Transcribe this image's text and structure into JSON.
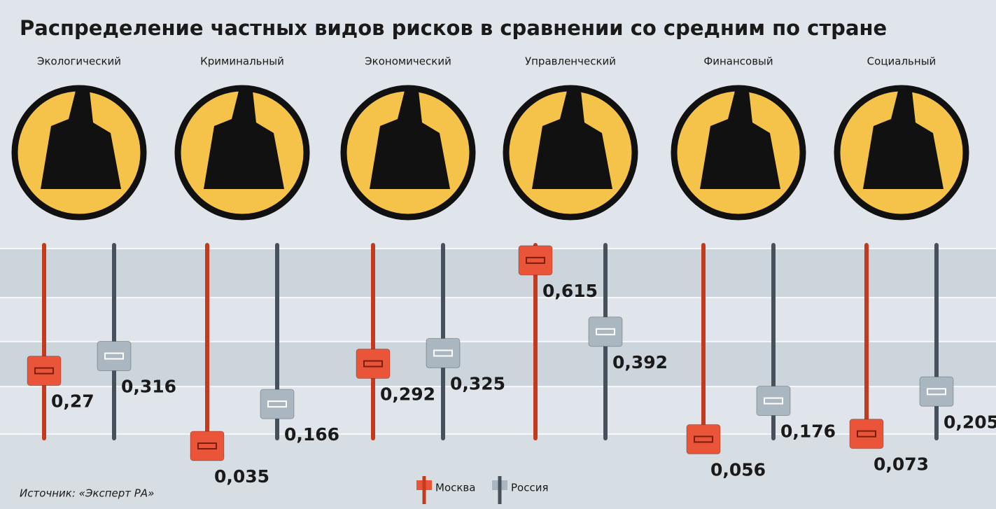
{
  "chart_data": {
    "type": "slider",
    "title": "Распределение частных видов рисков в сравнении со средним по стране",
    "categories": [
      "Экологический",
      "Криминальный",
      "Экономический",
      "Управленческий",
      "Финансовый",
      "Социальный"
    ],
    "series": [
      {
        "name": "Москва",
        "color": "#c43a1c",
        "knob_color": "#ea553a",
        "values": [
          0.27,
          0.035,
          0.292,
          0.615,
          0.056,
          0.073
        ],
        "value_labels": [
          "0,27",
          "0,035",
          "0,292",
          "0,615",
          "0,056",
          "0,073"
        ]
      },
      {
        "name": "Россия",
        "color": "#46515b",
        "knob_color": "#aab7c1",
        "values": [
          0.316,
          0.166,
          0.325,
          0.392,
          0.176,
          0.205
        ],
        "value_labels": [
          "0,316",
          "0,166",
          "0,325",
          "0,392",
          "0,176",
          "0,205"
        ]
      }
    ],
    "ylim": [
      0,
      0.7
    ],
    "source": "Источник: «Эксперт РА»"
  }
}
